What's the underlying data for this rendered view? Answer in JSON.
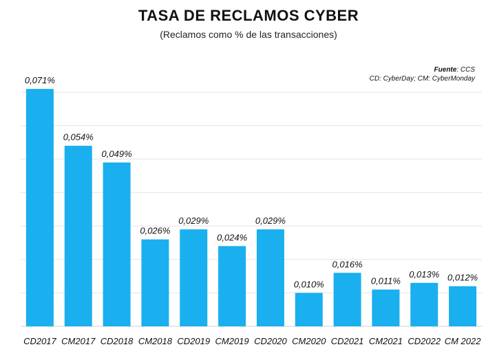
{
  "chart_data": {
    "type": "bar",
    "title": "TASA DE RECLAMOS CYBER",
    "subtitle": "(Reclamos como % de las transacciones)",
    "source_label": "Fuente",
    "source_value": ": CCS",
    "note": "CD: CyberDay; CM: CyberMonday",
    "categories": [
      "CD2017",
      "CM2017",
      "CD2018",
      "CM2018",
      "CD2019",
      "CM2019",
      "CD2020",
      "CM2020",
      "CD2021",
      "CM2021",
      "CD2022",
      "CM 2022"
    ],
    "values": [
      0.071,
      0.054,
      0.049,
      0.026,
      0.029,
      0.024,
      0.029,
      0.01,
      0.016,
      0.011,
      0.013,
      0.012
    ],
    "data_labels": [
      "0,071%",
      "0,054%",
      "0,049%",
      "0,026%",
      "0,029%",
      "0,024%",
      "0,029%",
      "0,010%",
      "0,016%",
      "0,011%",
      "0,013%",
      "0,012%"
    ],
    "ylim": [
      0,
      0.07
    ],
    "grid": true,
    "bar_color": "#1AAFEF",
    "grid_color": "#E3E3E3"
  }
}
